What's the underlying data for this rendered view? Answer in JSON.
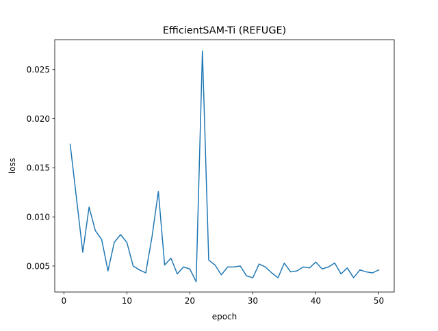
{
  "chart_data": {
    "type": "line",
    "title": "EfficientSAM-Ti (REFUGE)",
    "xlabel": "epoch",
    "ylabel": "loss",
    "xlim": [
      -1.45,
      52.45
    ],
    "ylim": [
      0.00235,
      0.02805
    ],
    "xticks": [
      0,
      10,
      20,
      30,
      40,
      50
    ],
    "xtick_labels": [
      "0",
      "10",
      "20",
      "30",
      "40",
      "50"
    ],
    "yticks": [
      0.005,
      0.01,
      0.015,
      0.02,
      0.025
    ],
    "ytick_labels": [
      "0.005",
      "0.010",
      "0.015",
      "0.020",
      "0.025"
    ],
    "grid": false,
    "series": [
      {
        "color": "#1f77b4",
        "x": [
          1,
          2,
          3,
          4,
          5,
          6,
          7,
          8,
          9,
          10,
          11,
          12,
          13,
          14,
          15,
          16,
          17,
          18,
          19,
          20,
          21,
          22,
          23,
          24,
          25,
          26,
          27,
          28,
          29,
          30,
          31,
          32,
          33,
          34,
          35,
          36,
          37,
          38,
          39,
          40,
          41,
          42,
          43,
          44,
          45,
          46,
          47,
          48,
          49,
          50
        ],
        "values": [
          0.0174,
          0.0119,
          0.0064,
          0.011,
          0.0086,
          0.0077,
          0.0045,
          0.0074,
          0.0082,
          0.0074,
          0.005,
          0.0046,
          0.0043,
          0.008,
          0.0126,
          0.0051,
          0.0058,
          0.0042,
          0.0049,
          0.0047,
          0.0034,
          0.0269,
          0.0056,
          0.0051,
          0.0041,
          0.0049,
          0.0049,
          0.005,
          0.004,
          0.0038,
          0.0052,
          0.0049,
          0.0043,
          0.0038,
          0.0053,
          0.0044,
          0.0045,
          0.0049,
          0.0048,
          0.0054,
          0.0047,
          0.0049,
          0.0053,
          0.0042,
          0.0048,
          0.0038,
          0.0046,
          0.0044,
          0.0043,
          0.0046
        ]
      }
    ]
  }
}
